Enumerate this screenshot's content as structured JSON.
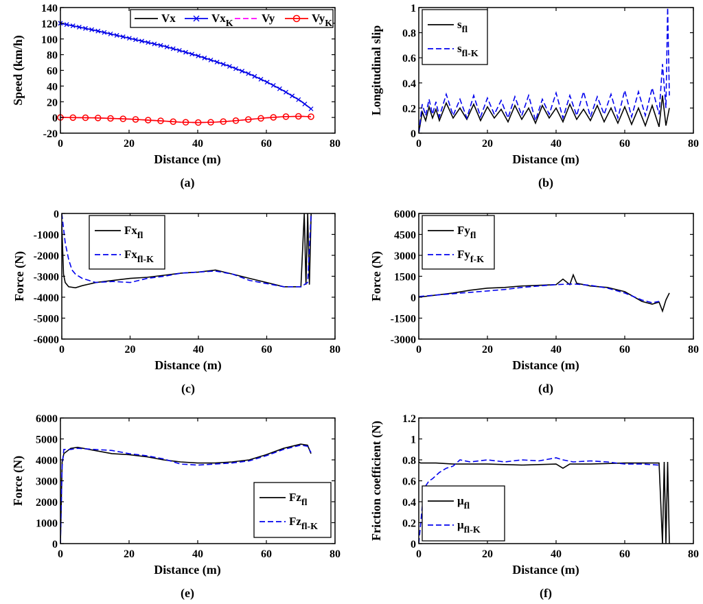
{
  "chart_data": [
    {
      "id": "a",
      "type": "line",
      "caption": "(a)",
      "xlabel": "Distance (m)",
      "ylabel": "Speed (km/h)",
      "xlim": [
        0,
        80
      ],
      "ylim": [
        -20,
        140
      ],
      "xticks": [
        0,
        20,
        40,
        60,
        80
      ],
      "yticks": [
        -20,
        0,
        20,
        40,
        60,
        80,
        100,
        120,
        140
      ],
      "legend": {
        "position": "top-right",
        "layout": "horizontal"
      },
      "series": [
        {
          "name": "Vx",
          "color": "#000000",
          "dash": "solid",
          "marker": "none",
          "sub": "",
          "x": [
            0,
            5,
            10,
            15,
            20,
            25,
            30,
            35,
            40,
            45,
            50,
            55,
            60,
            65,
            70,
            73
          ],
          "y": [
            120,
            115.5,
            111,
            106,
            101,
            96,
            91,
            85,
            78.5,
            71.5,
            64,
            55.5,
            45.5,
            34,
            21,
            11
          ]
        },
        {
          "name": "Vx",
          "color": "#0000ee",
          "dash": "solid",
          "marker": "x",
          "sub": "K",
          "x": [
            0,
            5,
            10,
            15,
            20,
            25,
            30,
            35,
            40,
            45,
            50,
            55,
            60,
            65,
            70,
            73
          ],
          "y": [
            120,
            115.5,
            111,
            106,
            101,
            96,
            91,
            85,
            78.5,
            71.5,
            64,
            55.5,
            45.5,
            34,
            21,
            11
          ]
        },
        {
          "name": "Vy",
          "color": "#ff00ff",
          "dash": "dashed",
          "marker": "none",
          "sub": "",
          "x": [
            0,
            10,
            20,
            30,
            35,
            40,
            45,
            50,
            55,
            60,
            65,
            70,
            73
          ],
          "y": [
            0,
            -0.5,
            -2,
            -4.5,
            -6,
            -6.5,
            -6,
            -4.5,
            -2.5,
            -0.5,
            1,
            1.5,
            1
          ]
        },
        {
          "name": "Vy",
          "color": "#ff0000",
          "dash": "solid",
          "marker": "o",
          "sub": "K",
          "x": [
            0,
            10,
            20,
            30,
            35,
            40,
            45,
            50,
            55,
            60,
            65,
            70,
            73
          ],
          "y": [
            0,
            -0.5,
            -2,
            -4.5,
            -6,
            -6.5,
            -6,
            -4.5,
            -2.5,
            -0.5,
            1,
            1.5,
            1
          ]
        }
      ]
    },
    {
      "id": "b",
      "type": "line",
      "caption": "(b)",
      "xlabel": "Distance (m)",
      "ylabel": "Longitudinal slip",
      "xlim": [
        0,
        80
      ],
      "ylim": [
        0,
        1
      ],
      "xticks": [
        0,
        20,
        40,
        60,
        80
      ],
      "yticks": [
        0,
        0.2,
        0.4,
        0.6,
        0.8,
        1
      ],
      "legend": {
        "position": "top-left",
        "layout": "vertical"
      },
      "series": [
        {
          "name": "s",
          "sub": "fl",
          "color": "#000000",
          "dash": "solid",
          "x": [
            0,
            1,
            2,
            3,
            4,
            5,
            6,
            8,
            10,
            12,
            14,
            16,
            18,
            20,
            22,
            24,
            26,
            28,
            30,
            32,
            34,
            36,
            38,
            40,
            42,
            44,
            46,
            48,
            50,
            52,
            54,
            56,
            58,
            60,
            62,
            64,
            66,
            68,
            70,
            71,
            72,
            73
          ],
          "y": [
            0,
            0.17,
            0.1,
            0.21,
            0.12,
            0.19,
            0.1,
            0.24,
            0.12,
            0.2,
            0.11,
            0.23,
            0.1,
            0.21,
            0.12,
            0.19,
            0.09,
            0.22,
            0.11,
            0.2,
            0.08,
            0.22,
            0.12,
            0.2,
            0.09,
            0.23,
            0.11,
            0.19,
            0.1,
            0.22,
            0.09,
            0.2,
            0.08,
            0.21,
            0.07,
            0.2,
            0.06,
            0.22,
            0.05,
            0.3,
            0.06,
            0.2
          ]
        },
        {
          "name": "s",
          "sub": "fl-K",
          "color": "#0000ee",
          "dash": "dashed",
          "x": [
            0,
            1,
            2,
            3,
            4,
            5,
            6,
            8,
            10,
            12,
            14,
            16,
            18,
            20,
            22,
            24,
            26,
            28,
            30,
            32,
            34,
            36,
            38,
            40,
            42,
            44,
            46,
            48,
            50,
            52,
            54,
            56,
            58,
            60,
            62,
            64,
            66,
            68,
            70,
            71,
            72,
            72.5,
            73
          ],
          "y": [
            0,
            0.23,
            0.14,
            0.27,
            0.15,
            0.25,
            0.13,
            0.31,
            0.14,
            0.27,
            0.12,
            0.3,
            0.13,
            0.28,
            0.15,
            0.26,
            0.12,
            0.29,
            0.14,
            0.3,
            0.1,
            0.27,
            0.15,
            0.32,
            0.12,
            0.3,
            0.14,
            0.33,
            0.13,
            0.29,
            0.15,
            0.31,
            0.12,
            0.34,
            0.13,
            0.33,
            0.14,
            0.36,
            0.15,
            0.55,
            0.2,
            1,
            0.3
          ]
        }
      ]
    },
    {
      "id": "c",
      "type": "line",
      "caption": "(c)",
      "xlabel": "Distance (m)",
      "ylabel": "Force (N)",
      "xlim": [
        0,
        80
      ],
      "ylim": [
        -6000,
        0
      ],
      "xticks": [
        0,
        20,
        40,
        60,
        80
      ],
      "yticks": [
        -6000,
        -5000,
        -4000,
        -3000,
        -2000,
        -1000,
        0
      ],
      "legend": {
        "position": "top-left",
        "layout": "vertical"
      },
      "series": [
        {
          "name": "Fx",
          "sub": "fl",
          "color": "#000000",
          "dash": "solid",
          "x": [
            0,
            0.5,
            1,
            2,
            4,
            6,
            10,
            15,
            20,
            25,
            30,
            35,
            40,
            45,
            50,
            55,
            60,
            65,
            70,
            71,
            71.5,
            72,
            72.5,
            73
          ],
          "y": [
            -500,
            -2900,
            -3300,
            -3500,
            -3550,
            -3450,
            -3300,
            -3200,
            -3100,
            -3050,
            -2950,
            -2850,
            -2800,
            -2700,
            -2900,
            -3100,
            -3300,
            -3500,
            -3500,
            0,
            -3400,
            0,
            -3400,
            0
          ]
        },
        {
          "name": "Fx",
          "sub": "fl-K",
          "color": "#0000ee",
          "dash": "dashed",
          "x": [
            0,
            1,
            2,
            3,
            4,
            6,
            8,
            10,
            15,
            20,
            25,
            30,
            35,
            40,
            45,
            50,
            55,
            60,
            65,
            70,
            72,
            73
          ],
          "y": [
            0,
            -1400,
            -2200,
            -2700,
            -2900,
            -3100,
            -3200,
            -3300,
            -3250,
            -3300,
            -3100,
            -3000,
            -2850,
            -2800,
            -2750,
            -2900,
            -3200,
            -3350,
            -3500,
            -3500,
            -3300,
            0
          ]
        }
      ]
    },
    {
      "id": "d",
      "type": "line",
      "caption": "(d)",
      "xlabel": "Distance (m)",
      "ylabel": "Force (N)",
      "xlim": [
        0,
        80
      ],
      "ylim": [
        -3000,
        6000
      ],
      "xticks": [
        0,
        20,
        40,
        60,
        80
      ],
      "yticks": [
        -3000,
        -1500,
        0,
        1500,
        3000,
        4500,
        6000
      ],
      "legend": {
        "position": "top-left",
        "layout": "vertical"
      },
      "series": [
        {
          "name": "Fy",
          "sub": "fl",
          "color": "#000000",
          "dash": "solid",
          "x": [
            0,
            5,
            10,
            15,
            20,
            25,
            30,
            35,
            40,
            42,
            44,
            45,
            46,
            50,
            55,
            60,
            65,
            68,
            70,
            71,
            72,
            73
          ],
          "y": [
            0,
            150,
            300,
            500,
            650,
            700,
            800,
            850,
            900,
            1300,
            900,
            1600,
            1000,
            800,
            700,
            400,
            -300,
            -500,
            -350,
            -1000,
            -200,
            300
          ]
        },
        {
          "name": "Fy",
          "sub": "f-K",
          "color": "#0000ee",
          "dash": "dashed",
          "x": [
            0,
            5,
            10,
            15,
            20,
            25,
            30,
            35,
            40,
            45,
            50,
            55,
            60,
            65,
            68,
            70
          ],
          "y": [
            50,
            150,
            250,
            350,
            450,
            550,
            700,
            800,
            900,
            950,
            850,
            650,
            300,
            -200,
            -400,
            -300
          ]
        }
      ]
    },
    {
      "id": "e",
      "type": "line",
      "caption": "(e)",
      "xlabel": "Distance (m)",
      "ylabel": "Force (N)",
      "xlim": [
        0,
        80
      ],
      "ylim": [
        0,
        6000
      ],
      "xticks": [
        0,
        20,
        40,
        60,
        80
      ],
      "yticks": [
        0,
        1000,
        2000,
        3000,
        4000,
        5000,
        6000
      ],
      "legend": {
        "position": "bottom-right",
        "layout": "vertical"
      },
      "series": [
        {
          "name": "Fz",
          "sub": "fl",
          "color": "#000000",
          "dash": "solid",
          "x": [
            0,
            0.5,
            1,
            3,
            5,
            10,
            15,
            20,
            25,
            30,
            35,
            40,
            45,
            50,
            55,
            60,
            65,
            70,
            72,
            73
          ],
          "y": [
            0,
            3900,
            4300,
            4550,
            4600,
            4450,
            4300,
            4250,
            4150,
            4000,
            3900,
            3850,
            3850,
            3900,
            4000,
            4250,
            4550,
            4750,
            4700,
            4300
          ]
        },
        {
          "name": "Fz",
          "sub": "fl-K",
          "color": "#0000ee",
          "dash": "dashed",
          "x": [
            0,
            0.5,
            1,
            3,
            5,
            10,
            15,
            20,
            25,
            30,
            35,
            40,
            45,
            50,
            55,
            60,
            65,
            70,
            72,
            73
          ],
          "y": [
            0,
            3700,
            4500,
            4500,
            4550,
            4500,
            4450,
            4300,
            4200,
            4050,
            3800,
            3750,
            3800,
            3850,
            3950,
            4200,
            4500,
            4700,
            4650,
            4350
          ]
        }
      ]
    },
    {
      "id": "f",
      "type": "line",
      "caption": "(f)",
      "xlabel": "Distance (m)",
      "ylabel": "Friction coefficient (N)",
      "xlim": [
        0,
        80
      ],
      "ylim": [
        0,
        1.2
      ],
      "xticks": [
        0,
        20,
        40,
        60,
        80
      ],
      "yticks": [
        0,
        0.2,
        0.4,
        0.6,
        0.8,
        1,
        1.2
      ],
      "legend": {
        "position": "bottom-left",
        "layout": "vertical"
      },
      "series": [
        {
          "name": "μ",
          "sub": "fl",
          "color": "#000000",
          "dash": "solid",
          "x": [
            0,
            0.5,
            5,
            10,
            20,
            30,
            40,
            42,
            44,
            50,
            60,
            70,
            71,
            71.5,
            72,
            72.5,
            73
          ],
          "y": [
            0.78,
            0.77,
            0.77,
            0.76,
            0.76,
            0.75,
            0.76,
            0.72,
            0.76,
            0.76,
            0.77,
            0.77,
            0,
            0.78,
            0,
            0.78,
            0
          ]
        },
        {
          "name": "μ",
          "sub": "fl-K",
          "color": "#0000ee",
          "dash": "dashed",
          "x": [
            0,
            1,
            2,
            3,
            4,
            5,
            6,
            8,
            10,
            12,
            15,
            20,
            25,
            30,
            35,
            40,
            42,
            45,
            50,
            55,
            60,
            65,
            70
          ],
          "y": [
            0,
            0.35,
            0.55,
            0.6,
            0.62,
            0.65,
            0.68,
            0.72,
            0.74,
            0.8,
            0.78,
            0.8,
            0.78,
            0.8,
            0.79,
            0.82,
            0.8,
            0.78,
            0.79,
            0.78,
            0.76,
            0.76,
            0.75
          ]
        }
      ]
    }
  ]
}
